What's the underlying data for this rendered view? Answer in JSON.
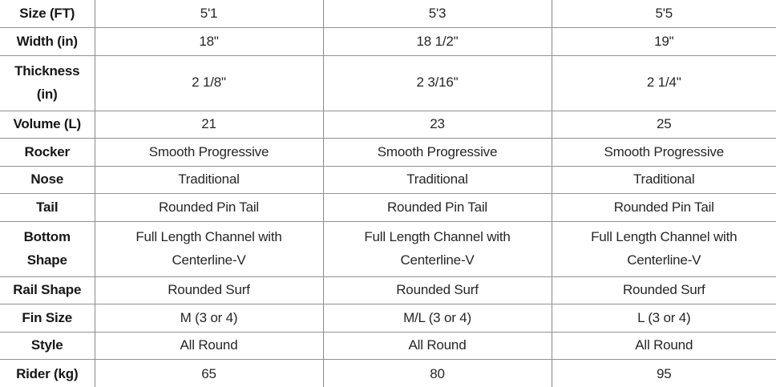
{
  "table": {
    "description": "Surfboard size specification table",
    "colors": {
      "text": "#1e1e1e",
      "gridline": "#8e8e8e",
      "background": "#ffffff"
    },
    "rows": [
      {
        "label": "Size (FT)",
        "values": [
          "5'1",
          "5'3",
          "5'5"
        ]
      },
      {
        "label": "Width (in)",
        "values": [
          "18\"",
          "18 1/2\"",
          "19\""
        ]
      },
      {
        "label": "Thickness (in)",
        "values": [
          "2 1/8\"",
          "2 3/16\"",
          "2 1/4\""
        ]
      },
      {
        "label": "Volume (L)",
        "values": [
          "21",
          "23",
          "25"
        ]
      },
      {
        "label": "Rocker",
        "values": [
          "Smooth Progressive",
          "Smooth Progressive",
          "Smooth Progressive"
        ]
      },
      {
        "label": "Nose",
        "values": [
          "Traditional",
          "Traditional",
          "Traditional"
        ]
      },
      {
        "label": "Tail",
        "values": [
          "Rounded Pin Tail",
          "Rounded Pin Tail",
          "Rounded Pin Tail"
        ]
      },
      {
        "label": "Bottom Shape",
        "values": [
          "Full Length Channel with Centerline-V",
          "Full Length Channel with Centerline-V",
          "Full Length Channel with Centerline-V"
        ]
      },
      {
        "label": "Rail Shape",
        "values": [
          "Rounded Surf",
          "Rounded Surf",
          "Rounded Surf"
        ]
      },
      {
        "label": "Fin Size",
        "values": [
          "M (3 or 4)",
          "M/L (3 or 4)",
          "L (3 or 4)"
        ]
      },
      {
        "label": "Style",
        "values": [
          "All Round",
          "All Round",
          "All Round"
        ]
      },
      {
        "label": "Rider (kg)",
        "values": [
          "65",
          "80",
          "95"
        ]
      }
    ]
  }
}
